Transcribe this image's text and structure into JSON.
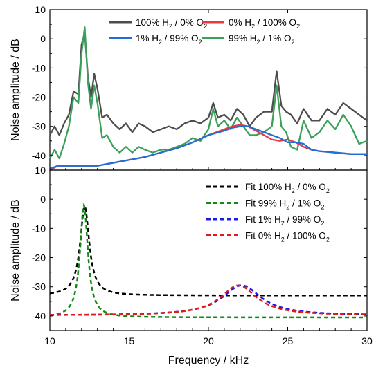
{
  "chart_data": [
    {
      "type": "line",
      "panel": "top",
      "ylabel": "Noise amplitude / dB",
      "ylim": [
        -45,
        10
      ],
      "yticks": [
        10,
        0,
        -10,
        -20,
        -30,
        -40
      ],
      "xlim": [
        10,
        30
      ],
      "grid": false,
      "legend_position": "top, two columns",
      "legend": [
        {
          "pre": "100% H",
          "mid": " / 0% O",
          "color": "#4d4d4d"
        },
        {
          "pre": "0% H",
          "mid": " / 100% O",
          "color": "#e8383d"
        },
        {
          "pre": "1% H",
          "mid": " / 99% O",
          "color": "#1f6fd6"
        },
        {
          "pre": "99% H",
          "mid": " / 1% O",
          "color": "#3aa05a"
        }
      ],
      "series": [
        {
          "name": "100% H2 / 0% O2",
          "color": "#4d4d4d",
          "x": [
            10,
            10.3,
            10.6,
            10.9,
            11.2,
            11.5,
            11.8,
            12.0,
            12.2,
            12.4,
            12.6,
            12.8,
            13.0,
            13.3,
            13.6,
            14.0,
            14.4,
            14.8,
            15.2,
            15.6,
            16.0,
            16.5,
            17.0,
            17.5,
            18.0,
            18.5,
            19.0,
            19.5,
            20.0,
            20.3,
            20.6,
            21.0,
            21.4,
            21.8,
            22.2,
            22.6,
            23.0,
            23.5,
            24.0,
            24.3,
            24.6,
            24.9,
            25.2,
            25.6,
            26.0,
            26.5,
            27.0,
            27.5,
            28.0,
            28.5,
            29.0,
            29.5,
            30.0
          ],
          "y": [
            -33,
            -30,
            -33,
            -29,
            -26,
            -18,
            -19,
            -2,
            2,
            -13,
            -20,
            -12,
            -17,
            -27,
            -26,
            -29,
            -31,
            -29,
            -32,
            -29,
            -30,
            -32,
            -31,
            -30,
            -31,
            -29,
            -28,
            -29,
            -27,
            -22,
            -27,
            -26,
            -28,
            -24,
            -26,
            -30,
            -27,
            -25,
            -25,
            -11,
            -23,
            -25,
            -26,
            -29,
            -24,
            -28,
            -28,
            -24,
            -26,
            -22,
            -24,
            -26,
            -28
          ]
        },
        {
          "name": "99% H2 / 1% O2",
          "color": "#3aa05a",
          "x": [
            10,
            10.3,
            10.6,
            10.9,
            11.2,
            11.5,
            11.8,
            12.0,
            12.2,
            12.4,
            12.6,
            12.8,
            13.0,
            13.3,
            13.6,
            14.0,
            14.4,
            14.8,
            15.2,
            15.6,
            16.0,
            16.5,
            17.0,
            17.5,
            18.0,
            18.5,
            19.0,
            19.5,
            20.0,
            20.3,
            20.6,
            21.0,
            21.4,
            21.8,
            22.2,
            22.6,
            23.0,
            23.5,
            24.0,
            24.3,
            24.6,
            24.9,
            25.2,
            25.6,
            26.0,
            26.5,
            27.0,
            27.5,
            28.0,
            28.5,
            29.0,
            29.5,
            30.0
          ],
          "y": [
            -41,
            -38,
            -41,
            -36,
            -30,
            -20,
            -22,
            -5,
            4,
            -15,
            -24,
            -16,
            -22,
            -34,
            -33,
            -37,
            -39,
            -37,
            -39,
            -37,
            -38,
            -39,
            -38,
            -38,
            -37,
            -36,
            -34,
            -35,
            -31,
            -24,
            -30,
            -28,
            -31,
            -27,
            -30,
            -33,
            -33,
            -32,
            -30,
            -16,
            -30,
            -32,
            -37,
            -38,
            -28,
            -34,
            -32,
            -28,
            -31,
            -26,
            -30,
            -36,
            -35
          ]
        },
        {
          "name": "0% H2 / 100% O2",
          "color": "#e8383d",
          "x": [
            10,
            10.5,
            11,
            12,
            13,
            14,
            15,
            16,
            17,
            18,
            19,
            20,
            21,
            21.5,
            22,
            22.5,
            23,
            23.5,
            24,
            24.5,
            25,
            25.5,
            26,
            26.5,
            27,
            28,
            29,
            30
          ],
          "y": [
            -45,
            -43.5,
            -43.5,
            -43.5,
            -43.5,
            -42.5,
            -41.5,
            -40.5,
            -39,
            -37.5,
            -35.5,
            -33,
            -31,
            -30,
            -29.5,
            -30,
            -31.5,
            -33,
            -34.5,
            -35,
            -34.5,
            -35.5,
            -37,
            -38,
            -38.5,
            -39,
            -39.5,
            -39.5
          ]
        },
        {
          "name": "1% H2 / 99% O2",
          "color": "#1f6fd6",
          "x": [
            10,
            10.5,
            11,
            12,
            13,
            14,
            15,
            16,
            17,
            18,
            19,
            20,
            21,
            21.5,
            22,
            22.5,
            23,
            23.5,
            24,
            24.5,
            25,
            25.5,
            26,
            26.5,
            27,
            28,
            29,
            30
          ],
          "y": [
            -44.5,
            -43.5,
            -43.5,
            -43.5,
            -43.5,
            -42.5,
            -41.5,
            -40.5,
            -39,
            -37.5,
            -35.5,
            -33,
            -31.5,
            -30.5,
            -30,
            -30,
            -31,
            -32,
            -33,
            -34,
            -35.5,
            -35.5,
            -36,
            -38,
            -38.5,
            -39,
            -39.5,
            -39.5
          ]
        }
      ]
    },
    {
      "type": "line",
      "panel": "bottom",
      "ylabel": "Noise amplitude / dB",
      "xlabel": "Frequency / kHz",
      "ylim": [
        -45,
        10
      ],
      "yticks": [
        0,
        -10,
        -20,
        -30,
        -40
      ],
      "xlim": [
        10,
        30
      ],
      "xticks": [
        10,
        15,
        20,
        25,
        30
      ],
      "grid": false,
      "legend_position": "top-right",
      "legend": [
        {
          "pre": "Fit 100% H",
          "mid": " / 0% O",
          "color": "#000000"
        },
        {
          "pre": "Fit 99% H",
          "mid": " / 1% O",
          "color": "#138a13"
        },
        {
          "pre": "Fit 1% H",
          "mid": " / 99% O",
          "color": "#1a1ae6"
        },
        {
          "pre": "Fit 0% H",
          "mid": " / 100% O",
          "color": "#e01a1a"
        }
      ],
      "series": [
        {
          "name": "Fit 100% H2 / 0% O2",
          "color": "#000000",
          "model": {
            "base": -33,
            "f0": 12.2,
            "amp": 30.5,
            "w": 0.35
          }
        },
        {
          "name": "Fit 99% H2 / 1% O2",
          "color": "#138a13",
          "model": {
            "base": -40.5,
            "f0": 12.15,
            "amp": 38.5,
            "w": 0.3
          }
        },
        {
          "name": "Fit 1% H2 / 99% O2",
          "color": "#1a1ae6",
          "model": {
            "base": -39.8,
            "f0": 22.1,
            "amp": 10.3,
            "w": 1.5
          }
        },
        {
          "name": "Fit 0% H2 / 100% O2",
          "color": "#e01a1a",
          "model": {
            "base": -39.8,
            "f0": 21.9,
            "amp": 10.3,
            "w": 1.4
          }
        }
      ]
    }
  ]
}
